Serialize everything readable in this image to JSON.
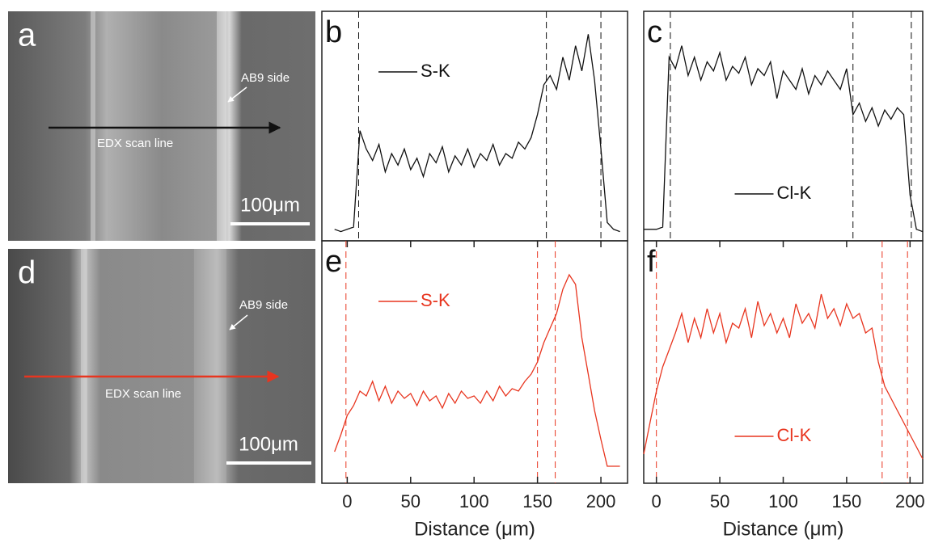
{
  "images": [
    {
      "label": "a",
      "annotation": "AB9 side",
      "scan_label": "EDX scan line",
      "scale_bar": "100μm",
      "arrow_color": "#111111"
    },
    {
      "label": "d",
      "annotation": "AB9 side",
      "scan_label": "EDX scan line",
      "scale_bar": "100μm",
      "arrow_color": "#e8351f"
    }
  ],
  "chart_data": [
    {
      "type": "line",
      "label": "b",
      "legend": "upper left",
      "xlim": [
        -20,
        221
      ],
      "ylim": [
        0,
        100
      ],
      "vlines": [
        9,
        157,
        200
      ],
      "x": [
        -10,
        -5,
        0,
        5,
        10,
        15,
        20,
        25,
        30,
        35,
        40,
        45,
        50,
        55,
        60,
        65,
        70,
        75,
        80,
        85,
        90,
        95,
        100,
        105,
        110,
        115,
        120,
        125,
        130,
        135,
        140,
        145,
        150,
        155,
        160,
        165,
        170,
        175,
        180,
        185,
        190,
        195,
        200,
        205,
        210,
        215
      ],
      "series": [
        {
          "name": "S-K",
          "color": "#111111",
          "values": [
            5,
            4,
            5,
            6,
            48,
            40,
            35,
            42,
            30,
            38,
            33,
            40,
            31,
            36,
            28,
            38,
            34,
            41,
            30,
            37,
            33,
            40,
            32,
            38,
            35,
            42,
            33,
            38,
            36,
            43,
            40,
            45,
            55,
            68,
            72,
            66,
            80,
            70,
            85,
            74,
            90,
            70,
            40,
            8,
            5,
            4
          ]
        }
      ]
    },
    {
      "type": "line",
      "label": "c",
      "legend": "lower center",
      "xlim": [
        -10,
        210
      ],
      "ylim": [
        0,
        100
      ],
      "vlines": [
        11,
        155,
        201
      ],
      "x": [
        -10,
        -5,
        0,
        5,
        10,
        15,
        20,
        25,
        30,
        35,
        40,
        45,
        50,
        55,
        60,
        65,
        70,
        75,
        80,
        85,
        90,
        95,
        100,
        105,
        110,
        115,
        120,
        125,
        130,
        135,
        140,
        145,
        150,
        155,
        160,
        165,
        170,
        175,
        180,
        185,
        190,
        195,
        200,
        205,
        210
      ],
      "series": [
        {
          "name": "Cl-K",
          "color": "#111111",
          "values": [
            5,
            5,
            5,
            6,
            80,
            75,
            85,
            72,
            80,
            70,
            78,
            74,
            82,
            70,
            76,
            73,
            80,
            68,
            75,
            72,
            78,
            62,
            74,
            70,
            66,
            75,
            64,
            72,
            68,
            74,
            70,
            66,
            75,
            55,
            60,
            52,
            58,
            50,
            57,
            53,
            58,
            55,
            20,
            5,
            4
          ]
        }
      ]
    },
    {
      "type": "line",
      "label": "e",
      "legend": "upper left",
      "xlim": [
        -20,
        221
      ],
      "ylim": [
        0,
        100
      ],
      "vlines": [
        -1,
        150,
        164
      ],
      "xticks": [
        0,
        50,
        100,
        150,
        200
      ],
      "xlabel": "Distance (μm)",
      "x": [
        -10,
        -5,
        0,
        5,
        10,
        15,
        20,
        25,
        30,
        35,
        40,
        45,
        50,
        55,
        60,
        65,
        70,
        75,
        80,
        85,
        90,
        95,
        100,
        105,
        110,
        115,
        120,
        125,
        130,
        135,
        140,
        145,
        150,
        155,
        160,
        165,
        170,
        175,
        180,
        185,
        190,
        195,
        200,
        205,
        210,
        215
      ],
      "series": [
        {
          "name": "S-K",
          "color": "#e8351f",
          "values": [
            13,
            20,
            28,
            32,
            38,
            36,
            42,
            34,
            40,
            33,
            38,
            35,
            37,
            32,
            38,
            34,
            36,
            31,
            37,
            33,
            38,
            35,
            36,
            33,
            38,
            34,
            40,
            36,
            39,
            38,
            42,
            45,
            50,
            58,
            64,
            70,
            80,
            86,
            82,
            60,
            45,
            30,
            18,
            7,
            7,
            7
          ]
        }
      ]
    },
    {
      "type": "line",
      "label": "f",
      "legend": "lower center",
      "xlim": [
        -10,
        210
      ],
      "ylim": [
        0,
        100
      ],
      "vlines": [
        0,
        178,
        198
      ],
      "xticks": [
        0,
        50,
        100,
        150,
        200
      ],
      "xlabel": "Distance (μm)",
      "x": [
        -10,
        -5,
        0,
        5,
        10,
        15,
        20,
        25,
        30,
        35,
        40,
        45,
        50,
        55,
        60,
        65,
        70,
        75,
        80,
        85,
        90,
        95,
        100,
        105,
        110,
        115,
        120,
        125,
        130,
        135,
        140,
        145,
        150,
        155,
        160,
        165,
        170,
        175,
        180,
        185,
        190,
        195,
        200,
        205,
        210
      ],
      "series": [
        {
          "name": "Cl-K",
          "color": "#e8351f",
          "values": [
            12,
            25,
            38,
            48,
            55,
            62,
            70,
            58,
            68,
            60,
            72,
            62,
            70,
            58,
            66,
            64,
            72,
            60,
            75,
            65,
            70,
            62,
            68,
            60,
            74,
            66,
            70,
            64,
            78,
            68,
            72,
            65,
            74,
            68,
            70,
            62,
            64,
            50,
            40,
            35,
            30,
            25,
            20,
            15,
            10
          ]
        }
      ]
    }
  ]
}
